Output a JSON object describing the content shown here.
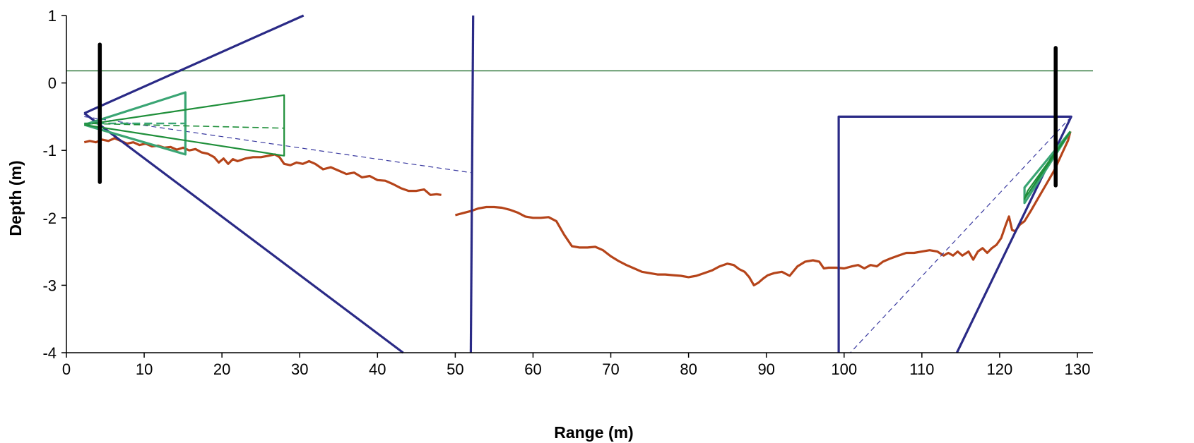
{
  "chart_data": {
    "type": "line",
    "title": "",
    "xlabel": "Range (m)",
    "ylabel": "Depth (m)",
    "xlim": [
      0,
      132
    ],
    "ylim": [
      -4,
      1
    ],
    "x_ticks": [
      0,
      10,
      20,
      30,
      40,
      50,
      60,
      70,
      80,
      90,
      100,
      110,
      120,
      130
    ],
    "y_ticks": [
      1,
      0,
      -1,
      -2,
      -3,
      -4
    ],
    "grid": false,
    "legend": "none",
    "colors": {
      "bottom": "#b5441a",
      "sensor_beam": "#2a2a86",
      "sensor_beam_dashed": "#3a3aa0",
      "instrument_beam": "#1f8f3a",
      "instrument_beam_light": "#3aa574",
      "mount": "#000000",
      "surface": "#1f6b2a"
    },
    "series": [
      {
        "role": "water-surface",
        "style": "thin",
        "points": [
          [
            0,
            0.18
          ],
          [
            132,
            0.18
          ]
        ]
      },
      {
        "role": "bottom-profile-left",
        "style": "bottom",
        "points": [
          [
            2.3,
            -0.88
          ],
          [
            3,
            -0.86
          ],
          [
            3.8,
            -0.88
          ],
          [
            4.6,
            -0.84
          ],
          [
            5.4,
            -0.86
          ],
          [
            6.2,
            -0.82
          ],
          [
            7,
            -0.86
          ],
          [
            7.8,
            -0.9
          ],
          [
            8.6,
            -0.88
          ],
          [
            9.4,
            -0.92
          ],
          [
            10.2,
            -0.9
          ],
          [
            11,
            -0.94
          ],
          [
            11.8,
            -0.93
          ],
          [
            12.6,
            -0.96
          ],
          [
            13.4,
            -0.95
          ],
          [
            14.2,
            -0.99
          ],
          [
            15,
            -0.96
          ],
          [
            15.8,
            -1.0
          ],
          [
            16.6,
            -0.98
          ],
          [
            17.4,
            -1.03
          ],
          [
            18.2,
            -1.05
          ],
          [
            19,
            -1.1
          ],
          [
            19.6,
            -1.18
          ],
          [
            20.2,
            -1.12
          ],
          [
            20.8,
            -1.2
          ],
          [
            21.4,
            -1.13
          ],
          [
            22,
            -1.16
          ],
          [
            23,
            -1.12
          ],
          [
            24,
            -1.1
          ],
          [
            25,
            -1.1
          ],
          [
            26,
            -1.08
          ],
          [
            26.8,
            -1.06
          ],
          [
            27.4,
            -1.1
          ],
          [
            28,
            -1.2
          ],
          [
            28.8,
            -1.22
          ],
          [
            29.6,
            -1.18
          ],
          [
            30.4,
            -1.2
          ],
          [
            31.2,
            -1.16
          ],
          [
            32,
            -1.2
          ],
          [
            33,
            -1.28
          ],
          [
            34,
            -1.25
          ],
          [
            35,
            -1.3
          ],
          [
            36,
            -1.35
          ],
          [
            37,
            -1.33
          ],
          [
            38,
            -1.4
          ],
          [
            39,
            -1.38
          ],
          [
            40,
            -1.44
          ],
          [
            41,
            -1.45
          ],
          [
            42,
            -1.5
          ],
          [
            43,
            -1.56
          ],
          [
            44,
            -1.6
          ],
          [
            45,
            -1.6
          ],
          [
            46,
            -1.58
          ],
          [
            46.8,
            -1.66
          ],
          [
            47.6,
            -1.65
          ],
          [
            48.2,
            -1.66
          ]
        ]
      },
      {
        "role": "bottom-profile-right",
        "style": "bottom",
        "points": [
          [
            50,
            -1.96
          ],
          [
            51,
            -1.93
          ],
          [
            52,
            -1.9
          ],
          [
            53,
            -1.86
          ],
          [
            54,
            -1.84
          ],
          [
            55,
            -1.84
          ],
          [
            56,
            -1.85
          ],
          [
            57,
            -1.88
          ],
          [
            58,
            -1.92
          ],
          [
            59,
            -1.98
          ],
          [
            60,
            -2.0
          ],
          [
            61,
            -2.0
          ],
          [
            62,
            -1.99
          ],
          [
            63,
            -2.05
          ],
          [
            64,
            -2.25
          ],
          [
            65,
            -2.42
          ],
          [
            66,
            -2.44
          ],
          [
            67,
            -2.44
          ],
          [
            68,
            -2.43
          ],
          [
            69,
            -2.48
          ],
          [
            70,
            -2.57
          ],
          [
            71,
            -2.64
          ],
          [
            72,
            -2.7
          ],
          [
            73,
            -2.75
          ],
          [
            74,
            -2.8
          ],
          [
            75,
            -2.82
          ],
          [
            76,
            -2.84
          ],
          [
            77,
            -2.84
          ],
          [
            78,
            -2.85
          ],
          [
            79,
            -2.86
          ],
          [
            80,
            -2.88
          ],
          [
            81,
            -2.86
          ],
          [
            82,
            -2.82
          ],
          [
            83,
            -2.78
          ],
          [
            84,
            -2.72
          ],
          [
            85,
            -2.68
          ],
          [
            85.8,
            -2.7
          ],
          [
            86.5,
            -2.76
          ],
          [
            87.2,
            -2.8
          ],
          [
            87.8,
            -2.88
          ],
          [
            88.4,
            -3.0
          ],
          [
            89,
            -2.96
          ],
          [
            89.6,
            -2.9
          ],
          [
            90.2,
            -2.85
          ],
          [
            91,
            -2.82
          ],
          [
            92,
            -2.8
          ],
          [
            93,
            -2.86
          ],
          [
            94,
            -2.72
          ],
          [
            95,
            -2.65
          ],
          [
            96,
            -2.63
          ],
          [
            96.8,
            -2.65
          ],
          [
            97.4,
            -2.75
          ],
          [
            98,
            -2.74
          ],
          [
            99,
            -2.74
          ],
          [
            100,
            -2.75
          ],
          [
            101,
            -2.72
          ],
          [
            101.8,
            -2.7
          ],
          [
            102.6,
            -2.75
          ],
          [
            103.4,
            -2.7
          ],
          [
            104.2,
            -2.72
          ],
          [
            105,
            -2.65
          ],
          [
            106,
            -2.6
          ],
          [
            107,
            -2.56
          ],
          [
            108,
            -2.52
          ],
          [
            109,
            -2.52
          ],
          [
            110,
            -2.5
          ],
          [
            111,
            -2.48
          ],
          [
            112,
            -2.5
          ],
          [
            112.8,
            -2.56
          ],
          [
            113.4,
            -2.52
          ],
          [
            114,
            -2.56
          ],
          [
            114.6,
            -2.5
          ],
          [
            115.2,
            -2.56
          ],
          [
            116,
            -2.5
          ],
          [
            116.6,
            -2.62
          ],
          [
            117.2,
            -2.5
          ],
          [
            117.8,
            -2.45
          ],
          [
            118.4,
            -2.52
          ],
          [
            119,
            -2.45
          ],
          [
            119.6,
            -2.4
          ],
          [
            120.2,
            -2.3
          ],
          [
            120.8,
            -2.1
          ],
          [
            121.2,
            -1.98
          ],
          [
            121.6,
            -2.18
          ],
          [
            122,
            -2.2
          ],
          [
            122.6,
            -2.1
          ],
          [
            123.2,
            -2.05
          ],
          [
            124,
            -1.9
          ],
          [
            125,
            -1.7
          ],
          [
            126,
            -1.5
          ],
          [
            127,
            -1.3
          ],
          [
            128,
            -1.05
          ],
          [
            128.8,
            -0.85
          ],
          [
            129.1,
            -0.72
          ]
        ]
      },
      {
        "role": "left-sensor-beam-upper",
        "style": "beam",
        "points": [
          [
            2.3,
            -0.45
          ],
          [
            30.5,
            1.0
          ]
        ]
      },
      {
        "role": "left-sensor-beam-lower",
        "style": "beam",
        "points": [
          [
            2.3,
            -0.45
          ],
          [
            43.3,
            -4.0
          ]
        ]
      },
      {
        "role": "left-sensor-beam-axis",
        "style": "beam-dashed",
        "points": [
          [
            2.3,
            -0.5
          ],
          [
            52,
            -1.33
          ]
        ]
      },
      {
        "role": "vertical-sensor-beam",
        "style": "beam",
        "points": [
          [
            52.3,
            1.0
          ],
          [
            52.0,
            -4.0
          ]
        ]
      },
      {
        "role": "right-sensor-box",
        "style": "beam",
        "points": [
          [
            99.3,
            -4.0
          ],
          [
            99.3,
            -0.5
          ],
          [
            129.2,
            -0.5
          ],
          [
            114.5,
            -4.0
          ]
        ]
      },
      {
        "role": "right-sensor-beam-axis",
        "style": "beam-dashed",
        "points": [
          [
            129.2,
            -0.5
          ],
          [
            100.8,
            -4.0
          ]
        ]
      },
      {
        "role": "left-instrument-beam-short",
        "style": "instrument-light",
        "points": [
          [
            2.3,
            -0.62
          ],
          [
            15.3,
            -0.14
          ],
          [
            15.3,
            -1.06
          ],
          [
            2.3,
            -0.62
          ]
        ]
      },
      {
        "role": "left-instrument-beam-long",
        "style": "instrument",
        "points": [
          [
            2.3,
            -0.62
          ],
          [
            28,
            -0.18
          ],
          [
            28,
            -1.08
          ],
          [
            2.3,
            -0.62
          ]
        ]
      },
      {
        "role": "left-instrument-axis-short",
        "style": "instrument-light-dashed",
        "points": [
          [
            2.3,
            -0.6
          ],
          [
            15.3,
            -0.6
          ]
        ]
      },
      {
        "role": "left-instrument-axis-long",
        "style": "instrument-dashed",
        "points": [
          [
            2.3,
            -0.6
          ],
          [
            28,
            -0.67
          ]
        ]
      },
      {
        "role": "right-instrument-beam-short",
        "style": "instrument-light",
        "points": [
          [
            129.1,
            -0.72
          ],
          [
            123.2,
            -1.55
          ],
          [
            123.2,
            -1.78
          ],
          [
            129.1,
            -0.72
          ]
        ]
      },
      {
        "role": "right-instrument-beam-long",
        "style": "instrument",
        "points": [
          [
            129.1,
            -0.72
          ],
          [
            123.6,
            -1.6
          ],
          [
            123.2,
            -1.72
          ],
          [
            129.1,
            -0.72
          ]
        ]
      },
      {
        "role": "left-mount-pole",
        "style": "mount",
        "points": [
          [
            4.3,
            0.57
          ],
          [
            4.3,
            -1.47
          ]
        ]
      },
      {
        "role": "right-mount-pole",
        "style": "mount",
        "points": [
          [
            127.2,
            0.52
          ],
          [
            127.2,
            -1.52
          ]
        ]
      }
    ]
  }
}
